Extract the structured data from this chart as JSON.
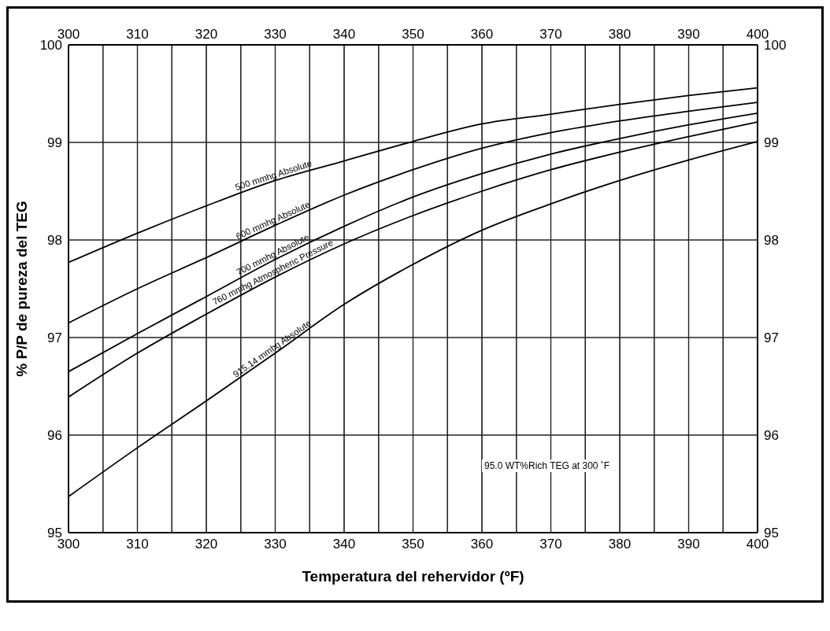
{
  "chart_data": {
    "type": "line",
    "xlabel": "Temperatura del rehervidor (ºF)",
    "ylabel": "% P/P de pureza del TEG",
    "x": [
      300,
      310,
      320,
      330,
      340,
      350,
      360,
      370,
      380,
      390,
      400
    ],
    "series": [
      {
        "name": "500 mmhg Absolute",
        "color": "#000000",
        "values": [
          97.77,
          98.07,
          98.35,
          98.61,
          98.81,
          99.01,
          99.19,
          99.29,
          99.39,
          99.48,
          99.56
        ]
      },
      {
        "name": "600 mmhg Absolute",
        "color": "#000000",
        "values": [
          97.15,
          97.5,
          97.82,
          98.15,
          98.46,
          98.72,
          98.94,
          99.1,
          99.22,
          99.32,
          99.41
        ]
      },
      {
        "name": "700 mmhg Absolute",
        "color": "#000000",
        "values": [
          96.65,
          97.04,
          97.42,
          97.8,
          98.14,
          98.44,
          98.68,
          98.88,
          99.04,
          99.18,
          99.3
        ]
      },
      {
        "name": "760 mmhg Atmospheric Pressure",
        "color": "#000000",
        "values": [
          96.39,
          96.84,
          97.24,
          97.62,
          97.96,
          98.25,
          98.5,
          98.72,
          98.9,
          99.06,
          99.21
        ]
      },
      {
        "name": "915.14 mmhg Absolute",
        "color": "#000000",
        "values": [
          95.37,
          95.87,
          96.35,
          96.84,
          97.34,
          97.75,
          98.1,
          98.37,
          98.61,
          98.82,
          99.01
        ]
      }
    ],
    "xlim": [
      300,
      400
    ],
    "xticks": [
      300,
      {
        "value": 305,
        "label": null
      },
      310,
      {
        "value": 315,
        "label": null
      },
      320,
      {
        "value": 325,
        "label": null
      },
      330,
      {
        "value": 335,
        "label": null
      },
      340,
      {
        "value": 345,
        "label": null
      },
      350,
      {
        "value": 355,
        "label": null
      },
      360,
      {
        "value": 365,
        "label": null
      },
      370,
      {
        "value": 375,
        "label": null
      },
      380,
      {
        "value": 385,
        "label": null
      },
      390,
      {
        "value": 395,
        "label": null
      },
      400
    ],
    "x2lim": [
      300,
      400
    ],
    "x2ticks": [
      300,
      {
        "value": 305,
        "label": null
      },
      310,
      {
        "value": 315,
        "label": null
      },
      320,
      {
        "value": 325,
        "label": null
      },
      330,
      {
        "value": 335,
        "label": null
      },
      340,
      {
        "value": 345,
        "label": null
      },
      350,
      {
        "value": 355,
        "label": null
      },
      360,
      {
        "value": 365,
        "label": null
      },
      370,
      {
        "value": 375,
        "label": null
      },
      380,
      {
        "value": 385,
        "label": null
      },
      390,
      {
        "value": 395,
        "label": null
      },
      400
    ],
    "ylim": [
      95,
      100
    ],
    "yticks": [
      95,
      96,
      97,
      98,
      99,
      100
    ],
    "y2lim": [
      95,
      100
    ],
    "y2ticks": [
      95,
      96,
      97,
      98,
      99,
      100
    ],
    "grid": true,
    "legend": false,
    "marker": "none",
    "line_style": "solid",
    "annotations": [
      "95.0 WT%Rich TEG at 300 ˚F"
    ]
  }
}
